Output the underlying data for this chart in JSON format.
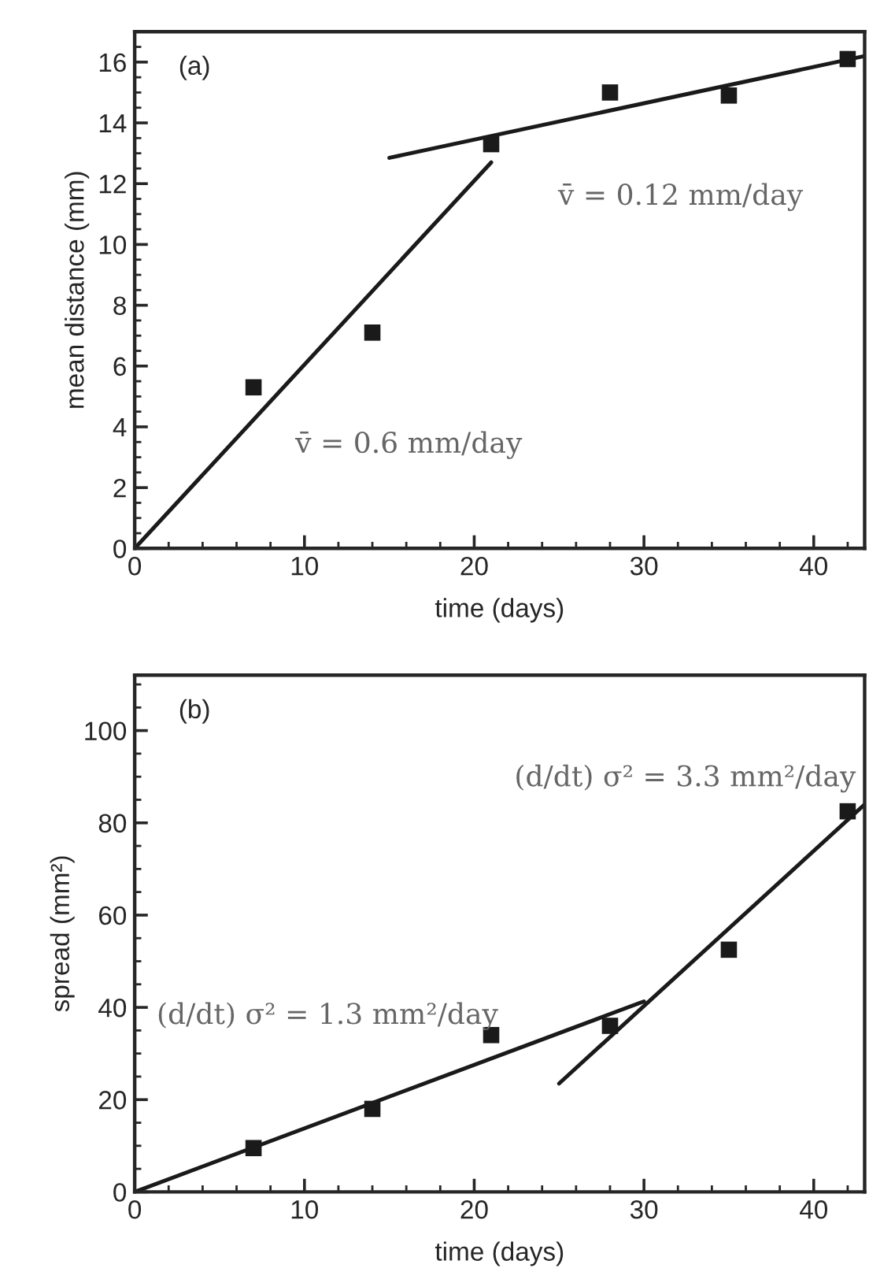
{
  "chart_data": [
    {
      "type": "scatter",
      "xlabel": "time (days)",
      "ylabel": "mean distance (mm)",
      "xlim": [
        0,
        43
      ],
      "ylim": [
        0,
        17
      ],
      "xticks": [
        0,
        10,
        20,
        30,
        40
      ],
      "yticks": [
        0,
        2,
        4,
        6,
        8,
        10,
        12,
        14,
        16
      ],
      "series": [
        {
          "color": "#1a1a1a",
          "marker": "square",
          "x": [
            7,
            14,
            21,
            28,
            35,
            42
          ],
          "values": [
            5.3,
            7.1,
            13.3,
            15.0,
            14.9,
            16.1
          ]
        },
        {
          "type": "line",
          "color": "#1a1a1a",
          "line_style": "solid",
          "x": [
            0,
            21
          ],
          "values": [
            0,
            12.7
          ]
        },
        {
          "type": "line",
          "color": "#1a1a1a",
          "line_style": "solid",
          "x": [
            15,
            43
          ],
          "values": [
            12.85,
            16.2
          ]
        }
      ],
      "annotations": [
        "(a)",
        "v̄ = 0.6 mm/day",
        "v̄ = 0.12 mm/day"
      ]
    },
    {
      "type": "scatter",
      "xlabel": "time (days)",
      "ylabel": "spread (mm²)",
      "xlim": [
        0,
        43
      ],
      "ylim": [
        0,
        112
      ],
      "xticks": [
        0,
        10,
        20,
        30,
        40
      ],
      "yticks": [
        0,
        20,
        40,
        60,
        80,
        100
      ],
      "series": [
        {
          "color": "#1a1a1a",
          "marker": "square",
          "x": [
            7,
            14,
            21,
            28,
            35,
            42
          ],
          "values": [
            9.5,
            18,
            34,
            36,
            52.5,
            82.5
          ]
        },
        {
          "type": "line",
          "color": "#1a1a1a",
          "line_style": "solid",
          "x": [
            0,
            30
          ],
          "values": [
            0,
            41.3
          ]
        },
        {
          "type": "line",
          "color": "#1a1a1a",
          "line_style": "solid",
          "x": [
            25,
            43
          ],
          "values": [
            23.5,
            84
          ]
        }
      ],
      "annotations": [
        "(b)",
        "(d/dt) σ² = 1.3 mm²/day",
        "(d/dt) σ² = 3.3 mm²/day"
      ]
    }
  ]
}
